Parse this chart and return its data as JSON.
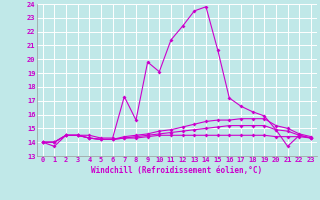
{
  "xlabel": "Windchill (Refroidissement éolien,°C)",
  "ylabel": "",
  "bg_color": "#c0e8e8",
  "grid_color": "#ffffff",
  "line_color": "#cc00cc",
  "xlim": [
    -0.5,
    23.5
  ],
  "ylim": [
    13,
    24
  ],
  "yticks": [
    13,
    14,
    15,
    16,
    17,
    18,
    19,
    20,
    21,
    22,
    23,
    24
  ],
  "xticks": [
    0,
    1,
    2,
    3,
    4,
    5,
    6,
    7,
    8,
    9,
    10,
    11,
    12,
    13,
    14,
    15,
    16,
    17,
    18,
    19,
    20,
    21,
    22,
    23
  ],
  "line1_x": [
    0,
    1,
    2,
    3,
    4,
    5,
    6,
    7,
    8,
    9,
    10,
    11,
    12,
    13,
    14,
    15,
    16,
    17,
    18,
    19,
    20,
    21,
    22,
    23
  ],
  "line1_y": [
    14.0,
    13.7,
    14.5,
    14.5,
    14.5,
    14.3,
    14.3,
    17.3,
    15.6,
    19.8,
    19.1,
    21.4,
    22.4,
    23.5,
    23.8,
    20.7,
    17.2,
    16.6,
    16.2,
    15.9,
    14.9,
    13.7,
    14.5,
    14.3
  ],
  "line2_x": [
    0,
    1,
    2,
    3,
    4,
    5,
    6,
    7,
    8,
    9,
    10,
    11,
    12,
    13,
    14,
    15,
    16,
    17,
    18,
    19,
    20,
    21,
    22,
    23
  ],
  "line2_y": [
    14.0,
    14.0,
    14.5,
    14.5,
    14.3,
    14.2,
    14.2,
    14.4,
    14.5,
    14.6,
    14.8,
    14.9,
    15.1,
    15.3,
    15.5,
    15.6,
    15.6,
    15.7,
    15.7,
    15.7,
    15.2,
    15.0,
    14.6,
    14.4
  ],
  "line3_x": [
    0,
    1,
    2,
    3,
    4,
    5,
    6,
    7,
    8,
    9,
    10,
    11,
    12,
    13,
    14,
    15,
    16,
    17,
    18,
    19,
    20,
    21,
    22,
    23
  ],
  "line3_y": [
    14.0,
    14.0,
    14.5,
    14.5,
    14.3,
    14.2,
    14.2,
    14.3,
    14.4,
    14.5,
    14.6,
    14.7,
    14.8,
    14.9,
    15.0,
    15.1,
    15.2,
    15.2,
    15.2,
    15.2,
    14.9,
    14.8,
    14.5,
    14.3
  ],
  "line4_x": [
    0,
    1,
    2,
    3,
    4,
    5,
    6,
    7,
    8,
    9,
    10,
    11,
    12,
    13,
    14,
    15,
    16,
    17,
    18,
    19,
    20,
    21,
    22,
    23
  ],
  "line4_y": [
    14.0,
    14.0,
    14.5,
    14.5,
    14.3,
    14.2,
    14.2,
    14.3,
    14.3,
    14.4,
    14.5,
    14.5,
    14.5,
    14.5,
    14.5,
    14.5,
    14.5,
    14.5,
    14.5,
    14.5,
    14.4,
    14.4,
    14.4,
    14.3
  ]
}
